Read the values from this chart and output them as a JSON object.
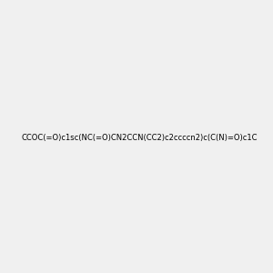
{
  "smiles": "CCOC(=O)c1sc(NC(=O)CN2CCN(CC2)c2ccccn2)c(C(N)=O)c1C",
  "image_size": 300,
  "background_color": "#f0f0f0",
  "title": ""
}
